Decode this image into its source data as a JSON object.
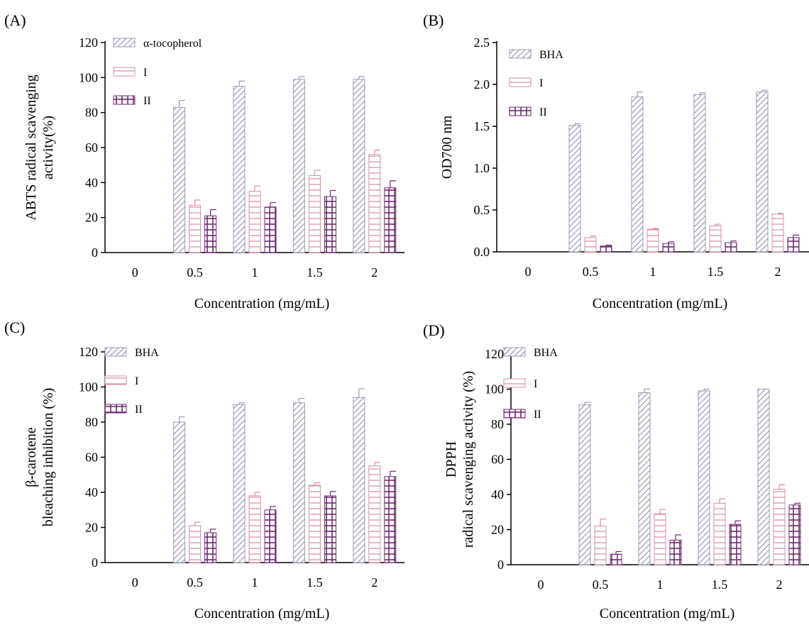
{
  "series_styles": {
    "a": {
      "stroke": "#9a9ab5",
      "pattern": "diagonal"
    },
    "b": {
      "stroke": "#d68ea8",
      "pattern": "horizontal"
    },
    "c": {
      "stroke": "#6e2a6e",
      "pattern": "grid"
    }
  },
  "chart_data": [
    {
      "panel": "(A)",
      "type": "bar",
      "categories": [
        "0",
        "0.5",
        "1",
        "1.5",
        "2"
      ],
      "xlabel": "Concentration (mg/mL)",
      "ylabel": [
        "ABTS radical scavenging",
        "activity(%)"
      ],
      "ylim": [
        0,
        120
      ],
      "yticks": [
        "0",
        "20",
        "40",
        "60",
        "80",
        "100",
        "120"
      ],
      "grid": false,
      "legend_position": "top-left",
      "series": [
        {
          "name": "α-tocopherol",
          "style": "a",
          "values": [
            0,
            83,
            95,
            99,
            99
          ],
          "errors": [
            0,
            4,
            3,
            1.5,
            1.5
          ]
        },
        {
          "name": "I",
          "style": "b",
          "values": [
            0,
            27,
            35,
            44,
            56
          ],
          "errors": [
            0,
            3,
            3,
            3,
            2.5
          ]
        },
        {
          "name": "II",
          "style": "c",
          "values": [
            0,
            21,
            26,
            32,
            37
          ],
          "errors": [
            0,
            3.5,
            2.5,
            3.5,
            4
          ]
        }
      ]
    },
    {
      "panel": "(B)",
      "type": "bar",
      "categories": [
        "0",
        "0.5",
        "1",
        "1.5",
        "2"
      ],
      "xlabel": "Concentration (mg/mL)",
      "ylabel": [
        "OD700 nm"
      ],
      "ylim": [
        0,
        2.5
      ],
      "yticks": [
        "0.0",
        "0.5",
        "1.0",
        "1.5",
        "2.0",
        "2.5"
      ],
      "grid": false,
      "legend_position": "top-left",
      "series": [
        {
          "name": "BHA",
          "style": "a",
          "values": [
            0,
            1.51,
            1.85,
            1.88,
            1.91
          ],
          "errors": [
            0,
            0.02,
            0.06,
            0.02,
            0.02
          ]
        },
        {
          "name": "I",
          "style": "b",
          "values": [
            0,
            0.17,
            0.27,
            0.31,
            0.45
          ],
          "errors": [
            0,
            0.02,
            0.01,
            0.02,
            0.01
          ]
        },
        {
          "name": "II",
          "style": "c",
          "values": [
            0,
            0.07,
            0.1,
            0.11,
            0.17
          ],
          "errors": [
            0,
            0.01,
            0.02,
            0.02,
            0.03
          ]
        }
      ]
    },
    {
      "panel": "(C)",
      "type": "bar",
      "categories": [
        "0",
        "0.5",
        "1",
        "1.5",
        "2"
      ],
      "xlabel": "Concentration (mg/mL)",
      "ylabel": [
        "β-carotene",
        "bleaching inhibition (%)"
      ],
      "ylim": [
        0,
        120
      ],
      "yticks": [
        "0",
        "20",
        "40",
        "60",
        "80",
        "100",
        "120"
      ],
      "grid": false,
      "legend_position": "top-left",
      "series": [
        {
          "name": "BHA",
          "style": "a",
          "values": [
            0,
            80,
            90,
            91,
            94
          ],
          "errors": [
            0,
            3,
            1,
            2.5,
            5
          ]
        },
        {
          "name": "I",
          "style": "b",
          "values": [
            0,
            21,
            38,
            44,
            55
          ],
          "errors": [
            0,
            2,
            2,
            1.5,
            2
          ]
        },
        {
          "name": "II",
          "style": "c",
          "values": [
            0,
            17,
            30,
            38,
            49
          ],
          "errors": [
            0,
            2,
            2,
            2.5,
            3
          ]
        }
      ]
    },
    {
      "panel": "(D)",
      "type": "bar",
      "categories": [
        "0",
        "0.5",
        "1",
        "1.5",
        "2"
      ],
      "xlabel": "Concentration (mg/mL)",
      "ylabel": [
        "DPPH",
        "radical scavenging activity (%)"
      ],
      "ylim": [
        0,
        120
      ],
      "yticks": [
        "0",
        "20",
        "40",
        "60",
        "80",
        "100",
        "120"
      ],
      "grid": false,
      "legend_position": "top-left",
      "series": [
        {
          "name": "BHA",
          "style": "a",
          "values": [
            0,
            91,
            98,
            99,
            100
          ],
          "errors": [
            0,
            1.5,
            2,
            1,
            0
          ]
        },
        {
          "name": "I",
          "style": "b",
          "values": [
            0,
            22,
            29,
            35,
            43
          ],
          "errors": [
            0,
            4,
            2.5,
            2.5,
            2.5
          ]
        },
        {
          "name": "II",
          "style": "c",
          "values": [
            0,
            6,
            14,
            23,
            34
          ],
          "errors": [
            0,
            1.5,
            3,
            2,
            1
          ]
        }
      ]
    }
  ]
}
